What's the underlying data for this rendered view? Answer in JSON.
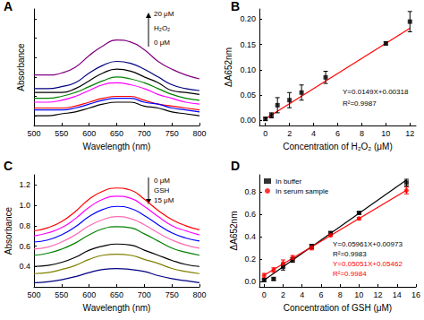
{
  "chart_data": [
    {
      "type": "line",
      "title": "A",
      "x_label": "Wavelength (nm)",
      "y_label": "Absorbance",
      "x": [
        500,
        525,
        550,
        575,
        600,
        625,
        650,
        675,
        700,
        725,
        750,
        775,
        800
      ],
      "series": [
        {
          "color": "#800080",
          "values": [
            0.31,
            0.31,
            0.32,
            0.35,
            0.41,
            0.46,
            0.49,
            0.48,
            0.44,
            0.38,
            0.34,
            0.31,
            0.29
          ]
        },
        {
          "color": "#000080",
          "values": [
            0.24,
            0.24,
            0.25,
            0.27,
            0.32,
            0.36,
            0.38,
            0.37,
            0.34,
            0.3,
            0.26,
            0.24,
            0.23
          ]
        },
        {
          "color": "#000000",
          "values": [
            0.22,
            0.22,
            0.22,
            0.24,
            0.28,
            0.32,
            0.34,
            0.33,
            0.3,
            0.27,
            0.23,
            0.22,
            0.21
          ]
        },
        {
          "color": "#008000",
          "values": [
            0.19,
            0.19,
            0.2,
            0.22,
            0.25,
            0.28,
            0.3,
            0.29,
            0.27,
            0.24,
            0.21,
            0.19,
            0.18
          ]
        },
        {
          "color": "#ff00ff",
          "values": [
            0.17,
            0.17,
            0.18,
            0.2,
            0.23,
            0.26,
            0.27,
            0.26,
            0.24,
            0.21,
            0.19,
            0.17,
            0.16
          ]
        },
        {
          "color": "#ff0000",
          "values": [
            0.14,
            0.14,
            0.14,
            0.15,
            0.17,
            0.19,
            0.2,
            0.2,
            0.18,
            0.16,
            0.15,
            0.14,
            0.13
          ]
        },
        {
          "color": "#0000ff",
          "values": [
            0.13,
            0.13,
            0.13,
            0.14,
            0.16,
            0.18,
            0.19,
            0.19,
            0.17,
            0.16,
            0.14,
            0.13,
            0.12
          ]
        },
        {
          "color": "#000000",
          "values": [
            0.1,
            0.1,
            0.11,
            0.12,
            0.14,
            0.16,
            0.17,
            0.17,
            0.15,
            0.14,
            0.12,
            0.11,
            0.1
          ]
        }
      ],
      "xlim": [
        500,
        800
      ],
      "xticks": [
        500,
        550,
        600,
        650,
        700,
        750,
        800
      ],
      "ylim": [
        0.05,
        0.65
      ],
      "yticks": [
        0.1,
        0.2,
        0.3,
        0.4,
        0.5,
        0.6
      ],
      "tick_labels": "x",
      "grid": false,
      "annotations": [
        {
          "text": "20 μM",
          "color": "#000000"
        },
        {
          "text": "H₂O₂",
          "color": "#000000"
        },
        {
          "text": "0 μM",
          "color": "#000000"
        }
      ]
    },
    {
      "type": "scatter",
      "title": "B",
      "x_label": "Concentration of H₂O₂ (μM)",
      "y_label": "ΔA652nm",
      "series": [
        {
          "type": "scatter",
          "color": "#000000",
          "marker": "square",
          "x": [
            0,
            0.5,
            1,
            2,
            3,
            5,
            10,
            12
          ],
          "values": [
            0.003,
            0.01,
            0.03,
            0.04,
            0.055,
            0.085,
            0.152,
            0.195
          ],
          "errors": [
            0.003,
            0.005,
            0.015,
            0.015,
            0.015,
            0.012,
            0.003,
            0.02
          ]
        },
        {
          "type": "line",
          "color": "#ff0000",
          "x": [
            0,
            12
          ],
          "values": [
            0.00318,
            0.18198
          ]
        }
      ],
      "xlim": [
        -0.5,
        12.5
      ],
      "xticks": [
        0,
        2,
        4,
        6,
        8,
        10,
        12
      ],
      "ylim": [
        -0.01,
        0.22
      ],
      "yticks": [
        {
          "value": 0,
          "label": "0.00"
        },
        0.05,
        {
          "value": 0.1,
          "label": "0.10"
        },
        0.15,
        {
          "value": 0.2,
          "label": "0.20"
        }
      ],
      "grid": false,
      "annotations": [
        {
          "text": "Y=0.0149X+0.00318",
          "color": "#000000"
        },
        {
          "text": "R²=0.9987",
          "color": "#000000"
        }
      ]
    },
    {
      "type": "line",
      "title": "C",
      "x_label": "Wavelength (nm)",
      "y_label": "Absorbance",
      "x": [
        500,
        525,
        550,
        575,
        600,
        625,
        650,
        675,
        700,
        725,
        750,
        775,
        800
      ],
      "series": [
        {
          "color": "#ff0000",
          "values": [
            0.75,
            0.78,
            0.84,
            0.94,
            1.06,
            1.14,
            1.17,
            1.15,
            1.06,
            0.95,
            0.86,
            0.8,
            0.76
          ]
        },
        {
          "color": "#ff00ff",
          "values": [
            0.7,
            0.73,
            0.78,
            0.87,
            0.98,
            1.06,
            1.09,
            1.07,
            0.99,
            0.89,
            0.8,
            0.75,
            0.71
          ]
        },
        {
          "color": "#0000ff",
          "values": [
            0.64,
            0.66,
            0.71,
            0.79,
            0.89,
            0.96,
            0.99,
            0.97,
            0.9,
            0.81,
            0.73,
            0.68,
            0.65
          ]
        },
        {
          "color": "#ff69b4",
          "values": [
            0.57,
            0.59,
            0.64,
            0.71,
            0.8,
            0.86,
            0.89,
            0.87,
            0.81,
            0.73,
            0.66,
            0.61,
            0.58
          ]
        },
        {
          "color": "#008000",
          "values": [
            0.51,
            0.53,
            0.57,
            0.63,
            0.71,
            0.77,
            0.79,
            0.78,
            0.72,
            0.65,
            0.58,
            0.54,
            0.51
          ]
        },
        {
          "color": "#000000",
          "values": [
            0.4,
            0.41,
            0.44,
            0.49,
            0.56,
            0.6,
            0.62,
            0.61,
            0.56,
            0.51,
            0.46,
            0.42,
            0.4
          ]
        },
        {
          "color": "#808000",
          "values": [
            0.33,
            0.34,
            0.37,
            0.41,
            0.47,
            0.51,
            0.52,
            0.51,
            0.47,
            0.43,
            0.38,
            0.35,
            0.33
          ]
        },
        {
          "color": "#000080",
          "values": [
            0.24,
            0.25,
            0.27,
            0.3,
            0.34,
            0.37,
            0.38,
            0.37,
            0.35,
            0.31,
            0.28,
            0.26,
            0.24
          ]
        }
      ],
      "xlim": [
        500,
        800
      ],
      "xticks": [
        500,
        550,
        600,
        650,
        700,
        750,
        800
      ],
      "ylim": [
        0.2,
        1.3
      ],
      "yticks": [
        0.4,
        0.6,
        0.8,
        {
          "value": 1,
          "label": "1.0"
        },
        1.2
      ],
      "grid": false,
      "annotations": [
        {
          "text": "0 μM",
          "color": "#000000"
        },
        {
          "text": "GSH",
          "color": "#000000"
        },
        {
          "text": "15 μM",
          "color": "#000000"
        }
      ]
    },
    {
      "type": "scatter",
      "title": "D",
      "x_label": "Concentration of GSH (μM)",
      "y_label": "ΔA652nm",
      "series": [
        {
          "type": "scatter",
          "name": "In buffer",
          "color": "#000000",
          "marker": "square",
          "x": [
            0,
            1,
            2,
            3,
            5,
            7,
            10,
            15
          ],
          "values": [
            0.01,
            0.02,
            0.13,
            0.19,
            0.31,
            0.43,
            0.61,
            0.88
          ],
          "errors": [
            0.01,
            0.01,
            0.03,
            0.02,
            0.02,
            0.01,
            0.01,
            0.03
          ]
        },
        {
          "type": "scatter",
          "name": "In serum sample",
          "color": "#ff0000",
          "marker": "circle",
          "x": [
            0,
            1,
            2,
            3,
            5,
            7,
            10,
            15
          ],
          "values": [
            0.05,
            0.1,
            0.16,
            0.21,
            0.3,
            0.41,
            0.56,
            0.81
          ],
          "errors": [
            0.02,
            0.02,
            0.03,
            0.02,
            0.02,
            0.01,
            0.01,
            0.03
          ]
        },
        {
          "type": "line",
          "color": "#000000",
          "x": [
            0,
            15
          ],
          "values": [
            0.00973,
            0.90388
          ]
        },
        {
          "type": "line",
          "color": "#ff0000",
          "x": [
            0,
            15
          ],
          "values": [
            0.05462,
            0.81227
          ]
        }
      ],
      "xlim": [
        -0.5,
        16
      ],
      "xticks": [
        0,
        2,
        4,
        6,
        8,
        10,
        12,
        14,
        16
      ],
      "ylim": [
        -0.05,
        0.95
      ],
      "yticks": [
        {
          "value": 0,
          "label": "0.0"
        },
        0.2,
        0.4,
        0.6,
        0.8
      ],
      "grid": false,
      "legend": "upper left",
      "annotations": [
        {
          "text": "Y=0.05961X+0.00973",
          "color": "#000000"
        },
        {
          "text": "R²=0.9983",
          "color": "#000000"
        },
        {
          "text": "Y=0.05051X+0.05462",
          "color": "#ff0000"
        },
        {
          "text": "R²=0.9984",
          "color": "#ff0000"
        }
      ]
    }
  ]
}
